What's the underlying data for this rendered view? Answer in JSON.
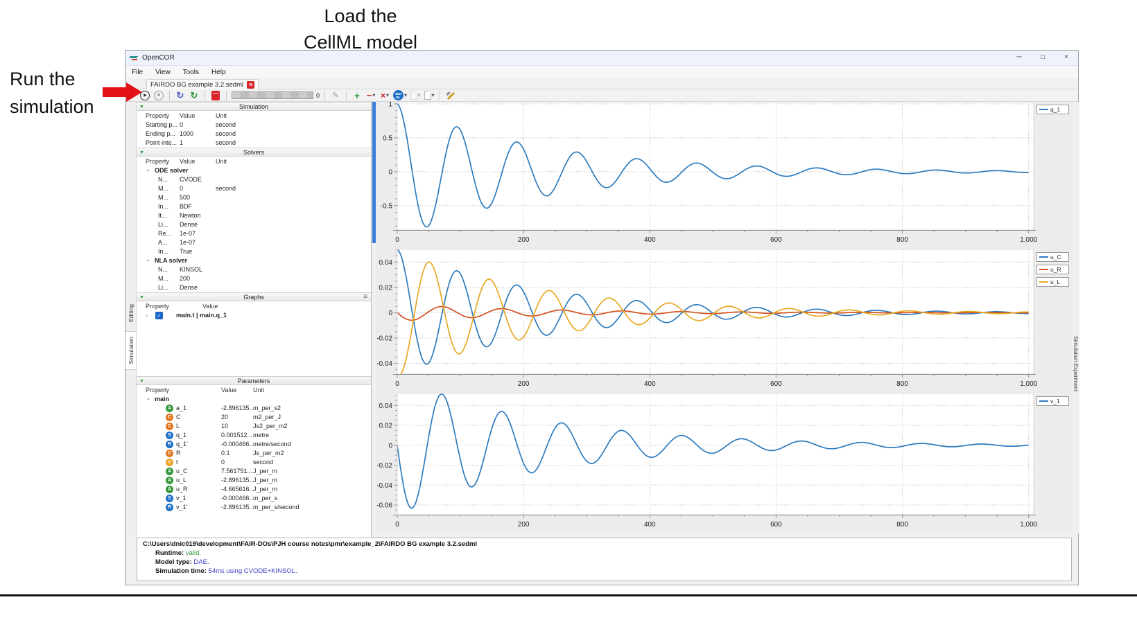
{
  "annotations": {
    "load_line1": "Load the",
    "load_line2": "CellML model",
    "run_line1": "Run the",
    "run_line2": "simulation",
    "arrow_color": "#e21118"
  },
  "icons": {
    "play": "▶",
    "stop": "■",
    "reset": "↻",
    "caret": "▾",
    "plus": "+",
    "minus": "−",
    "wand": "✎",
    "hamburger": "≡",
    "collapse": "▼",
    "chevron": "›",
    "check": "✓",
    "close_tab": "×",
    "minimize": "─",
    "maximize": "□",
    "close": "×",
    "x_mark": "×"
  },
  "window": {
    "title": "OpenCOR",
    "menus": [
      "File",
      "View",
      "Tools",
      "Help"
    ],
    "tab_label": "FAIRDO BG example 3.2.sedml"
  },
  "toolbar": {
    "progress": "0",
    "sedml_line1": "SED",
    "sedml_line2": "ML"
  },
  "side_tabs_left": [
    "Editing",
    "Simulation"
  ],
  "side_tab_right": "Simulation Experiment",
  "panels": {
    "simulation": {
      "title": "Simulation",
      "columns": [
        "Property",
        "Value",
        "Unit"
      ],
      "rows": [
        [
          "Starting p...",
          "0",
          "second"
        ],
        [
          "Ending p...",
          "1000",
          "second"
        ],
        [
          "Point inte...",
          "1",
          "second"
        ]
      ]
    },
    "solvers": {
      "title": "Solvers",
      "columns": [
        "Property",
        "Value",
        "Unit"
      ],
      "groups": [
        {
          "name": "ODE solver",
          "rows": [
            [
              "N...",
              "CVODE",
              ""
            ],
            [
              "M...",
              "0",
              "second"
            ],
            [
              "M...",
              "500",
              ""
            ],
            [
              "In...",
              "BDF",
              ""
            ],
            [
              "It...",
              "Newton",
              ""
            ],
            [
              "Li...",
              "Dense",
              ""
            ],
            [
              "Re...",
              "1e-07",
              ""
            ],
            [
              "A...",
              "1e-07",
              ""
            ],
            [
              "In...",
              "True",
              ""
            ]
          ]
        },
        {
          "name": "NLA solver",
          "rows": [
            [
              "N...",
              "KINSOL",
              ""
            ],
            [
              "M...",
              "200",
              ""
            ],
            [
              "Li...",
              "Dense",
              ""
            ]
          ]
        }
      ]
    },
    "graphs": {
      "title": "Graphs",
      "columns": [
        "Property",
        "Value"
      ],
      "row_label": "main.t | main.q_1",
      "checked": true
    },
    "parameters": {
      "title": "Parameters",
      "columns": [
        "Property",
        "Value",
        "Unit"
      ],
      "group": "main",
      "icon_colors": {
        "A": "#35973b",
        "C": "#e2751d",
        "S": "#1d70c8",
        "R": "#1d70c8",
        "V": "#eda221"
      },
      "rows": [
        [
          "A",
          "a_1",
          "-2.896135...",
          "m_per_s2"
        ],
        [
          "C",
          "C",
          "20",
          "m2_per_J"
        ],
        [
          "C",
          "L",
          "10",
          "Js2_per_m2"
        ],
        [
          "S",
          "q_1",
          "0.001512...",
          "metre"
        ],
        [
          "R",
          "q_1'",
          "-0.000466...",
          "metre/second"
        ],
        [
          "C",
          "R",
          "0.1",
          "Js_per_m2"
        ],
        [
          "V",
          "t",
          "0",
          "second"
        ],
        [
          "A",
          "u_C",
          "7.561751...",
          "J_per_m"
        ],
        [
          "A",
          "u_L",
          "-2.896135...",
          "J_per_m"
        ],
        [
          "A",
          "u_R",
          "-4.665616...",
          "J_per_m"
        ],
        [
          "S",
          "v_1",
          "-0.000466...",
          "m_per_s"
        ],
        [
          "R",
          "v_1'",
          "-2.896135...",
          "m_per_s/second"
        ]
      ]
    }
  },
  "chart_data": [
    {
      "type": "line",
      "name": "q_1 plot",
      "xlim": [
        0,
        1008
      ],
      "x_major_ticks": [
        0,
        200,
        400,
        600,
        800,
        1000
      ],
      "x_tick_labels": [
        "0",
        "200",
        "400",
        "600",
        "800",
        "1,000"
      ],
      "x_minor_step": 50,
      "ylim": [
        -0.86,
        1.03
      ],
      "y_ticks": [
        1,
        0.5,
        0,
        -0.5
      ],
      "y_tick_labels": [
        "1",
        "0.5",
        "0",
        "-0.5"
      ],
      "y_minor_step": 0.1,
      "grid": "dotted",
      "legend_position": "top-right",
      "series": [
        {
          "name": "q_1",
          "color": "#2c7bbf",
          "model": "y = A*exp(-t/tau)*cos(2*pi*t/T + phase)",
          "amplitude": 1,
          "period": 95,
          "tau": 230,
          "phase": 0,
          "key_points": [
            [
              0,
              1
            ],
            [
              47,
              -0.81
            ],
            [
              95,
              0.65
            ],
            [
              142,
              -0.51
            ],
            [
              190,
              0.41
            ],
            [
              238,
              -0.32
            ],
            [
              285,
              0.27
            ],
            [
              333,
              -0.22
            ],
            [
              380,
              0.17
            ],
            [
              475,
              0.11
            ],
            [
              1000,
              0.01
            ]
          ]
        }
      ]
    },
    {
      "type": "line",
      "name": "u_C u_R u_L plot",
      "xlim": [
        0,
        1008
      ],
      "x_major_ticks": [
        0,
        200,
        400,
        600,
        800,
        1000
      ],
      "x_tick_labels": [
        "0",
        "200",
        "400",
        "600",
        "800",
        "1,000"
      ],
      "x_minor_step": 50,
      "ylim": [
        -0.0485,
        0.05
      ],
      "y_ticks": [
        0.04,
        0.02,
        0,
        -0.02,
        -0.04
      ],
      "y_tick_labels": [
        "0.04",
        "0.02",
        "0",
        "-0.02",
        "-0.04"
      ],
      "y_minor_step": 0.005,
      "grid": "dotted",
      "legend_position": "top-right",
      "series": [
        {
          "name": "u_C",
          "color": "#2c7bbf",
          "model": "y = A*exp(-t/tau)*cos(2*pi*t/T + phase)",
          "amplitude": 0.05,
          "period": 95,
          "tau": 230,
          "phase": 0,
          "key_points": [
            [
              0,
              0.05
            ],
            [
              47,
              -0.04
            ],
            [
              95,
              0.032
            ],
            [
              142,
              -0.026
            ],
            [
              190,
              0.021
            ],
            [
              285,
              0.013
            ]
          ]
        },
        {
          "name": "u_R",
          "color": "#d4521c",
          "model": "y = A*exp(-t/tau)*cos(2*pi*t/T + phase)",
          "amplitude": 0.0066,
          "period": 95,
          "tau": 230,
          "phase": 1.5708,
          "key_points": [
            [
              0,
              0
            ],
            [
              24,
              -0.006
            ],
            [
              71,
              0.0055
            ],
            [
              119,
              -0.0045
            ],
            [
              166,
              0.0035
            ]
          ]
        },
        {
          "name": "u_L",
          "color": "#e7a821",
          "model": "y = A*exp(-t/tau)*cos(2*pi*t/T + phase)",
          "amplitude": -0.05,
          "period": 95,
          "tau": 230,
          "phase": -0.25,
          "key_points": [
            [
              0,
              -0.049
            ],
            [
              49,
              0.041
            ],
            [
              97,
              -0.033
            ],
            [
              144,
              0.026
            ],
            [
              192,
              -0.021
            ]
          ]
        }
      ]
    },
    {
      "type": "line",
      "name": "v_1 plot",
      "xlim": [
        0,
        1008
      ],
      "x_major_ticks": [
        0,
        200,
        400,
        600,
        800,
        1000
      ],
      "x_tick_labels": [
        "0",
        "200",
        "400",
        "600",
        "800",
        "1,000"
      ],
      "x_minor_step": 50,
      "ylim": [
        -0.0697,
        0.052
      ],
      "y_ticks": [
        0.04,
        0.02,
        0,
        -0.02,
        -0.04,
        -0.06
      ],
      "y_tick_labels": [
        "0.04",
        "0.02",
        "0",
        "-0.02",
        "-0.04",
        "-0.06"
      ],
      "y_minor_step": 0.005,
      "grid": "dotted",
      "legend_position": "top-right",
      "series": [
        {
          "name": "v_1",
          "color": "#2c7bbf",
          "model": "y = A*exp(-t/tau)*cos(2*pi*t/T + phase)",
          "amplitude": 0.07,
          "period": 95,
          "tau": 230,
          "phase": 1.5708,
          "key_points": [
            [
              0,
              0
            ],
            [
              24,
              -0.065
            ],
            [
              68,
              0.05
            ],
            [
              115,
              -0.041
            ],
            [
              160,
              0.033
            ],
            [
              205,
              -0.026
            ],
            [
              250,
              0.021
            ]
          ]
        }
      ]
    }
  ],
  "status": {
    "path": "C:\\Users\\dnic019\\development\\FAIR-DOs\\PJH course notes\\pmr\\example_2\\FAIRDO BG example 3.2.sedml",
    "lines": [
      {
        "label": "Runtime:",
        "value": "valid.",
        "color": "#2e9b3f"
      },
      {
        "label": "Model type:",
        "value": "DAE.",
        "color": "#4040c8"
      },
      {
        "label": "Simulation time:",
        "value": "54ms using CVODE+KINSOL.",
        "color": "#4040c8"
      }
    ]
  }
}
